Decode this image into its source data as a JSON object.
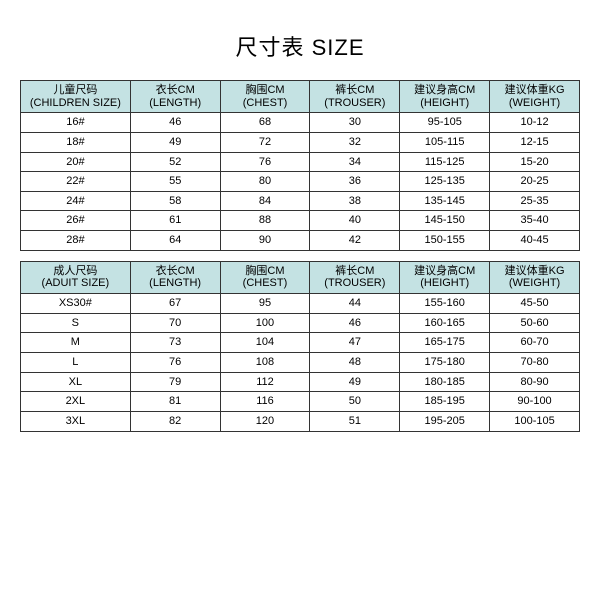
{
  "title": "尺寸表 SIZE",
  "header_bg": "#c4e2e3",
  "border_color": "#333333",
  "children": {
    "columns": [
      {
        "zh": "儿童尺码",
        "en": "(CHILDREN SIZE)"
      },
      {
        "zh": "衣长CM",
        "en": "(LENGTH)"
      },
      {
        "zh": "胸围CM",
        "en": "(CHEST)"
      },
      {
        "zh": "裤长CM",
        "en": "(TROUSER)"
      },
      {
        "zh": "建议身高CM",
        "en": "(HEIGHT)"
      },
      {
        "zh": "建议体重KG",
        "en": "(WEIGHT)"
      }
    ],
    "rows": [
      [
        "16#",
        "46",
        "68",
        "30",
        "95-105",
        "10-12"
      ],
      [
        "18#",
        "49",
        "72",
        "32",
        "105-115",
        "12-15"
      ],
      [
        "20#",
        "52",
        "76",
        "34",
        "115-125",
        "15-20"
      ],
      [
        "22#",
        "55",
        "80",
        "36",
        "125-135",
        "20-25"
      ],
      [
        "24#",
        "58",
        "84",
        "38",
        "135-145",
        "25-35"
      ],
      [
        "26#",
        "61",
        "88",
        "40",
        "145-150",
        "35-40"
      ],
      [
        "28#",
        "64",
        "90",
        "42",
        "150-155",
        "40-45"
      ]
    ]
  },
  "adult": {
    "columns": [
      {
        "zh": "成人尺码",
        "en": "(ADUIT SIZE)"
      },
      {
        "zh": "衣长CM",
        "en": "(LENGTH)"
      },
      {
        "zh": "胸围CM",
        "en": "(CHEST)"
      },
      {
        "zh": "裤长CM",
        "en": "(TROUSER)"
      },
      {
        "zh": "建议身高CM",
        "en": "(HEIGHT)"
      },
      {
        "zh": "建议体重KG",
        "en": "(WEIGHT)"
      }
    ],
    "rows": [
      [
        "XS30#",
        "67",
        "95",
        "44",
        "155-160",
        "45-50"
      ],
      [
        "S",
        "70",
        "100",
        "46",
        "160-165",
        "50-60"
      ],
      [
        "M",
        "73",
        "104",
        "47",
        "165-175",
        "60-70"
      ],
      [
        "L",
        "76",
        "108",
        "48",
        "175-180",
        "70-80"
      ],
      [
        "XL",
        "79",
        "112",
        "49",
        "180-185",
        "80-90"
      ],
      [
        "2XL",
        "81",
        "116",
        "50",
        "185-195",
        "90-100"
      ],
      [
        "3XL",
        "82",
        "120",
        "51",
        "195-205",
        "100-105"
      ]
    ]
  }
}
